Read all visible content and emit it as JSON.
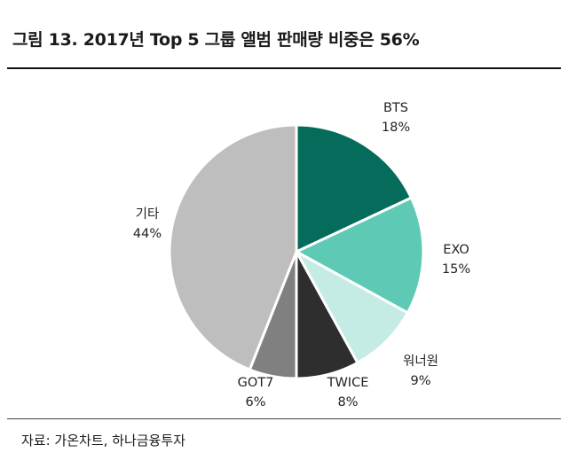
{
  "title": "그림 13. 2017년 Top 5 그룹 앨범 판매량 비중은 56%",
  "source": "자료: 가온차트, 하나금융투자",
  "chart_data": {
    "type": "pie",
    "slices": [
      {
        "label": "BTS",
        "value": 18,
        "value_label": "18%",
        "color": "#056b5a"
      },
      {
        "label": "EXO",
        "value": 15,
        "value_label": "15%",
        "color": "#5ecab5"
      },
      {
        "label": "워너원",
        "value": 9,
        "value_label": "9%",
        "color": "#c4ece5"
      },
      {
        "label": "TWICE",
        "value": 8,
        "value_label": "8%",
        "color": "#2e2e2e"
      },
      {
        "label": "GOT7",
        "value": 6,
        "value_label": "6%",
        "color": "#808080"
      },
      {
        "label": "기타",
        "value": 44,
        "value_label": "44%",
        "color": "#bebebe"
      }
    ],
    "start": "12 o'clock",
    "direction": "clockwise",
    "legend": "none (labels beside slices)"
  }
}
